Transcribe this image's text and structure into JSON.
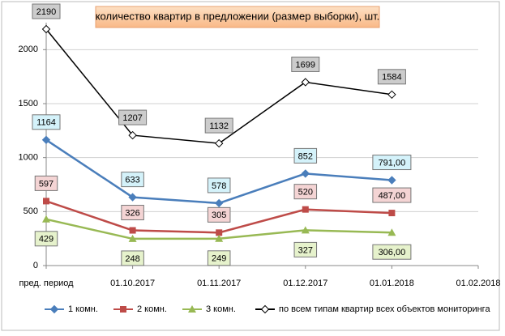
{
  "chart_data": {
    "type": "line",
    "title": "количество квартир в предложении (размер выборки), шт.",
    "categories": [
      "пред. период",
      "01.10.2017",
      "01.11.2017",
      "01.12.2017",
      "01.01.2018",
      "01.02.2018"
    ],
    "series": [
      {
        "name": "1 комн.",
        "color": "#4a7ebb",
        "marker": "diamond",
        "label_fill": "#d4f2fa",
        "label_pos": "above",
        "values": [
          1164,
          633,
          578,
          852,
          791,
          null
        ],
        "value_labels": [
          "1164",
          "633",
          "578",
          "852",
          "791,00",
          null
        ]
      },
      {
        "name": "2 комн.",
        "color": "#be4b48",
        "marker": "square",
        "label_fill": "#f4d4d4",
        "label_pos": "above",
        "values": [
          597,
          326,
          305,
          520,
          487,
          null
        ],
        "value_labels": [
          "597",
          "326",
          "305",
          "520",
          "487,00",
          null
        ]
      },
      {
        "name": "3 комн.",
        "color": "#98b954",
        "marker": "triangle",
        "label_fill": "#e6f2cc",
        "label_pos": "below",
        "values": [
          429,
          248,
          249,
          327,
          306,
          null
        ],
        "value_labels": [
          "429",
          "248",
          "249",
          "327",
          "306,00",
          null
        ]
      },
      {
        "name": "по всем типам квартир всех объектов мониторинга",
        "color": "#000000",
        "marker": "open-diamond",
        "label_fill": "#cccccc",
        "label_pos": "above",
        "values": [
          2190,
          1207,
          1132,
          1699,
          1584,
          null
        ],
        "value_labels": [
          "2190",
          "1207",
          "1132",
          "1699",
          "1584",
          null
        ]
      }
    ],
    "ylim": [
      0,
      2250
    ],
    "yticks": [
      0,
      500,
      1000,
      1500,
      2000
    ],
    "grid": true,
    "legend": "bottom"
  }
}
